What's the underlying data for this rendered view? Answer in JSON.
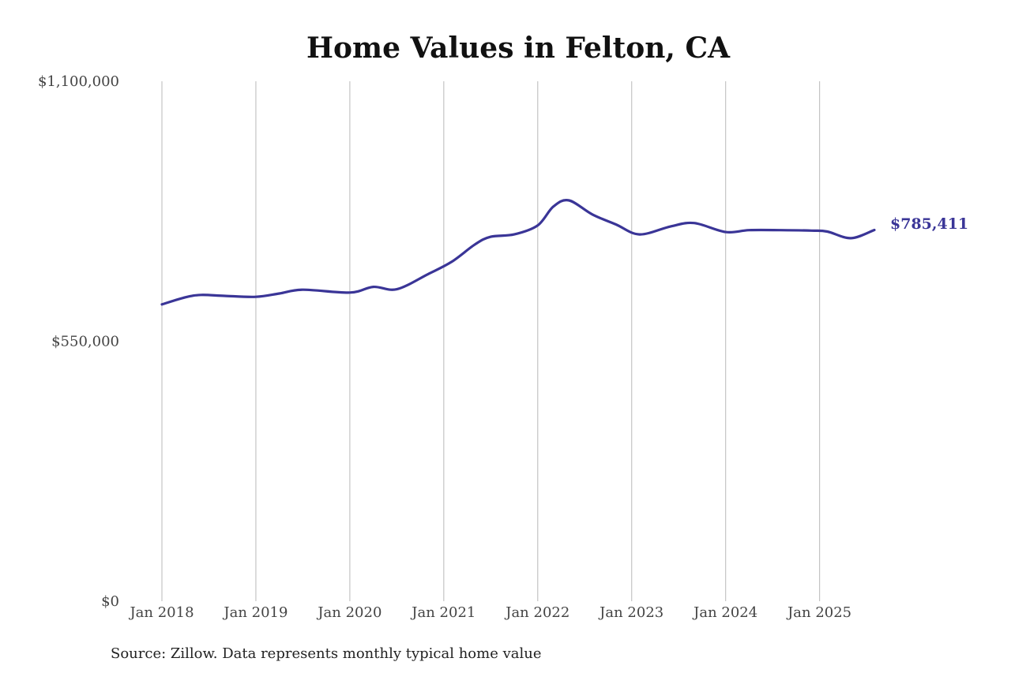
{
  "chart_data": {
    "type": "line",
    "title": "Home Values in Felton, CA",
    "source": "Source: Zillow. Data represents monthly typical home value",
    "ylim": [
      0,
      1100000
    ],
    "xlim": [
      "2018-01",
      "2025-08"
    ],
    "y_tick_labels": [
      {
        "value": 0,
        "label": "$0"
      },
      {
        "value": 550000,
        "label": "$550,000"
      },
      {
        "value": 1100000,
        "label": "$1,100,000"
      }
    ],
    "x_tick_labels": [
      {
        "value": "2018-01",
        "label": "Jan 2018"
      },
      {
        "value": "2019-01",
        "label": "Jan 2019"
      },
      {
        "value": "2020-01",
        "label": "Jan 2020"
      },
      {
        "value": "2021-01",
        "label": "Jan 2021"
      },
      {
        "value": "2022-01",
        "label": "Jan 2022"
      },
      {
        "value": "2023-01",
        "label": "Jan 2023"
      },
      {
        "value": "2024-01",
        "label": "Jan 2024"
      },
      {
        "value": "2025-01",
        "label": "Jan 2025"
      }
    ],
    "grid": "vertical",
    "line_color": "#3a3597",
    "end_label": "$785,411",
    "series": [
      {
        "x": [
          "2018-01",
          "2018-04",
          "2018-06",
          "2018-09",
          "2019-01",
          "2019-04",
          "2019-07",
          "2020-01",
          "2020-04",
          "2020-07",
          "2020-11",
          "2021-02",
          "2021-05",
          "2021-07",
          "2021-10",
          "2022-01",
          "2022-03",
          "2022-05",
          "2022-08",
          "2022-11",
          "2023-02",
          "2023-06",
          "2023-09",
          "2024-01",
          "2024-04",
          "2024-08",
          "2024-12",
          "2025-02",
          "2025-05",
          "2025-08"
        ],
        "y": [
          628000,
          643000,
          648000,
          646000,
          644000,
          651000,
          659000,
          653000,
          665000,
          660000,
          692000,
          718000,
          755000,
          771000,
          776000,
          795000,
          835000,
          848000,
          818000,
          797000,
          776000,
          793000,
          800000,
          781000,
          785000,
          785000,
          784000,
          782000,
          768000,
          785411
        ]
      }
    ]
  }
}
